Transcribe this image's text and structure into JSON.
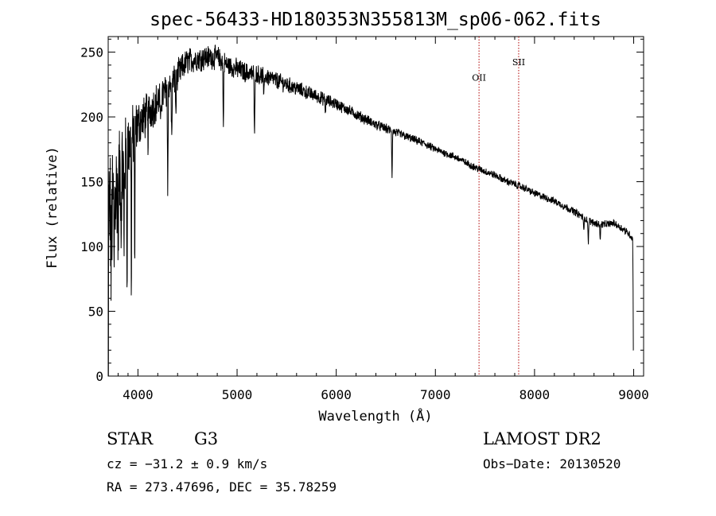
{
  "chart_data": {
    "type": "line",
    "title": "spec-56433-HD180353N355813M_sp06-062.fits",
    "xlabel": "Wavelength (Å)",
    "ylabel": "Flux (relative)",
    "xlim": [
      3700,
      9100
    ],
    "ylim": [
      0,
      262
    ],
    "xticks": [
      4000,
      5000,
      6000,
      7000,
      8000,
      9000
    ],
    "yticks": [
      0,
      50,
      100,
      150,
      200,
      250
    ],
    "continuum": [
      [
        3700,
        0
      ],
      [
        3705,
        130
      ],
      [
        3730,
        120
      ],
      [
        3760,
        140
      ],
      [
        3800,
        150
      ],
      [
        3850,
        160
      ],
      [
        3900,
        175
      ],
      [
        3950,
        185
      ],
      [
        4000,
        195
      ],
      [
        4050,
        198
      ],
      [
        4100,
        203
      ],
      [
        4150,
        208
      ],
      [
        4200,
        212
      ],
      [
        4250,
        217
      ],
      [
        4300,
        222
      ],
      [
        4350,
        226
      ],
      [
        4400,
        232
      ],
      [
        4450,
        238
      ],
      [
        4500,
        243
      ],
      [
        4600,
        245
      ],
      [
        4700,
        246
      ],
      [
        4800,
        246
      ],
      [
        4900,
        240
      ],
      [
        5000,
        237
      ],
      [
        5100,
        234
      ],
      [
        5200,
        233
      ],
      [
        5300,
        231
      ],
      [
        5400,
        228
      ],
      [
        5500,
        225
      ],
      [
        5600,
        222
      ],
      [
        5700,
        219
      ],
      [
        5800,
        216
      ],
      [
        5900,
        213
      ],
      [
        6000,
        210
      ],
      [
        6100,
        206
      ],
      [
        6200,
        202
      ],
      [
        6300,
        198
      ],
      [
        6400,
        194
      ],
      [
        6500,
        191
      ],
      [
        6600,
        188
      ],
      [
        6700,
        185
      ],
      [
        6800,
        182
      ],
      [
        6900,
        179
      ],
      [
        7000,
        175
      ],
      [
        7100,
        172
      ],
      [
        7200,
        169
      ],
      [
        7300,
        165
      ],
      [
        7400,
        161
      ],
      [
        7500,
        158
      ],
      [
        7600,
        155
      ],
      [
        7700,
        151
      ],
      [
        7800,
        148
      ],
      [
        7900,
        145
      ],
      [
        8000,
        141
      ],
      [
        8100,
        138
      ],
      [
        8200,
        135
      ],
      [
        8300,
        131
      ],
      [
        8400,
        127
      ],
      [
        8500,
        122
      ],
      [
        8600,
        118
      ],
      [
        8700,
        117
      ],
      [
        8800,
        118
      ],
      [
        8900,
        113
      ],
      [
        8950,
        110
      ],
      [
        8990,
        106
      ],
      [
        9000,
        20
      ]
    ],
    "absorption_lines": [
      [
        3730,
        70
      ],
      [
        3760,
        70
      ],
      [
        3800,
        95
      ],
      [
        3830,
        100
      ],
      [
        3860,
        80
      ],
      [
        3890,
        55
      ],
      [
        3934,
        48
      ],
      [
        3968,
        55
      ],
      [
        4100,
        180
      ],
      [
        4227,
        185
      ],
      [
        4300,
        140
      ],
      [
        4340,
        175
      ],
      [
        4383,
        200
      ],
      [
        4861,
        187
      ],
      [
        5175,
        175
      ],
      [
        5270,
        210
      ],
      [
        5890,
        200
      ],
      [
        6563,
        152
      ],
      [
        8498,
        110
      ],
      [
        8542,
        100
      ],
      [
        8662,
        102
      ]
    ],
    "noise_amplitude": [
      [
        3700,
        50
      ],
      [
        4000,
        16
      ],
      [
        4500,
        9
      ],
      [
        5000,
        7
      ],
      [
        6000,
        4
      ],
      [
        7000,
        2.5
      ],
      [
        9000,
        2.5
      ]
    ],
    "line_markers": [
      {
        "label": "OII",
        "wavelength": 7440,
        "label_flux": 228
      },
      {
        "label": "SII",
        "wavelength": 7840,
        "label_flux": 240
      }
    ]
  },
  "info": {
    "object_class": "STAR",
    "subclass": "G3",
    "survey": "LAMOST DR2",
    "redshift": "cz = −31.2 ± 0.9 km/s",
    "obs_date": "Obs−Date: 20130520",
    "coords": "RA = 273.47696, DEC =  35.78259"
  }
}
